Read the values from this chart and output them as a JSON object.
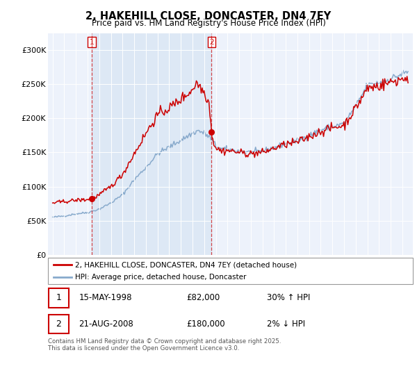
{
  "title": "2, HAKEHILL CLOSE, DONCASTER, DN4 7EY",
  "subtitle": "Price paid vs. HM Land Registry's House Price Index (HPI)",
  "sale1": {
    "date": 1998.37,
    "price": 82000,
    "label": "1",
    "date_str": "15-MAY-1998",
    "pct": "30% ↑ HPI"
  },
  "sale2": {
    "date": 2008.64,
    "price": 180000,
    "label": "2",
    "date_str": "21-AUG-2008",
    "pct": "2% ↓ HPI"
  },
  "legend_line1": "2, HAKEHILL CLOSE, DONCASTER, DN4 7EY (detached house)",
  "legend_line2": "HPI: Average price, detached house, Doncaster",
  "footer": "Contains HM Land Registry data © Crown copyright and database right 2025.\nThis data is licensed under the Open Government Licence v3.0.",
  "red_color": "#cc0000",
  "blue_color": "#88aacc",
  "shade_color": "#dde8f5",
  "ylim": [
    0,
    325000
  ],
  "yticks": [
    0,
    50000,
    100000,
    150000,
    200000,
    250000,
    300000
  ],
  "ytick_labels": [
    "£0",
    "£50K",
    "£100K",
    "£150K",
    "£200K",
    "£250K",
    "£300K"
  ],
  "background_color": "#ffffff",
  "plot_bg_color": "#edf2fb"
}
